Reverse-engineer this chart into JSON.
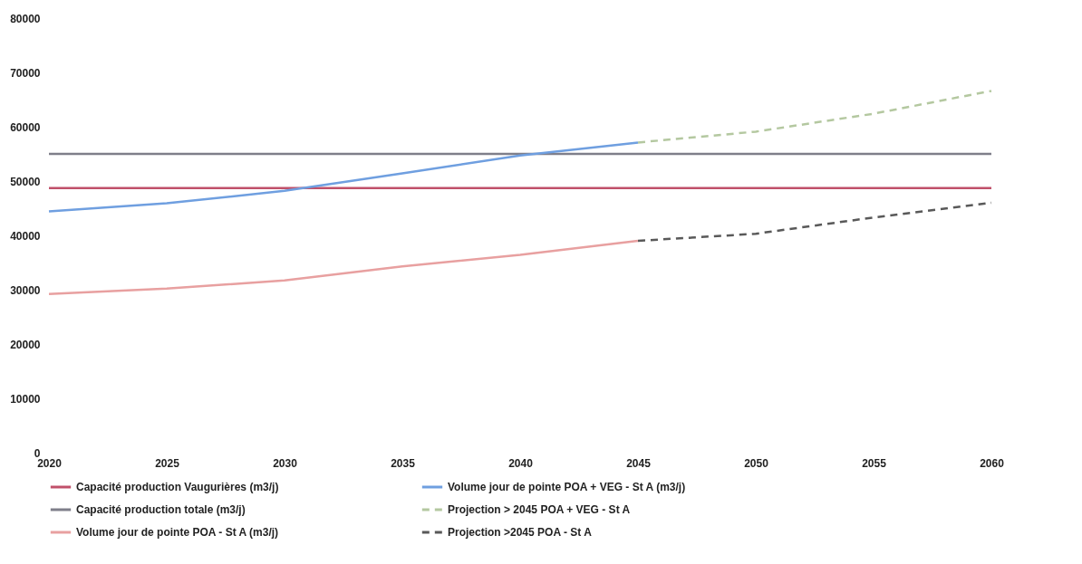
{
  "chart_data": {
    "type": "line",
    "x": [
      2020,
      2025,
      2030,
      2035,
      2040,
      2045,
      2050,
      2055,
      2060
    ],
    "xlim": [
      2020,
      2060
    ],
    "xticks": [
      2020,
      2025,
      2030,
      2035,
      2040,
      2045,
      2050,
      2055,
      2060
    ],
    "ylim": [
      0,
      80000
    ],
    "yticks": [
      0,
      10000,
      20000,
      30000,
      40000,
      50000,
      60000,
      70000,
      80000
    ],
    "grid": false,
    "legend": "bottom",
    "series": [
      {
        "name": "Capacité production Vaugurières (m3/j)",
        "color": "#c0506a",
        "line_style": "solid",
        "values": [
          48700,
          48700,
          48700,
          48700,
          48700,
          48700,
          48700,
          48700,
          48700
        ]
      },
      {
        "name": "Capacité production totale (m3/j)",
        "color": "#7f7f8a",
        "line_style": "solid",
        "values": [
          55000,
          55000,
          55000,
          55000,
          55000,
          55000,
          55000,
          55000,
          55000
        ]
      },
      {
        "name": "Volume jour de pointe POA - St A (m3/j)",
        "color": "#e8a0a0",
        "line_style": "solid",
        "values": [
          29200,
          30200,
          31700,
          34300,
          36400,
          39000,
          null,
          null,
          null
        ]
      },
      {
        "name": "Volume jour de pointe POA + VEG - St A (m3/j)",
        "color": "#6f9fe0",
        "line_style": "solid",
        "values": [
          44400,
          45900,
          48200,
          51400,
          54700,
          57100,
          null,
          null,
          null
        ]
      },
      {
        "name": "Projection > 2045 POA + VEG - St A",
        "color": "#b4c8a0",
        "line_style": "dashed",
        "values": [
          null,
          null,
          null,
          null,
          null,
          57100,
          59100,
          62400,
          66600
        ]
      },
      {
        "name": "Projection >2045 POA - St A",
        "color": "#595959",
        "line_style": "dashed",
        "values": [
          null,
          null,
          null,
          null,
          null,
          39000,
          40300,
          43300,
          46000
        ]
      }
    ]
  }
}
